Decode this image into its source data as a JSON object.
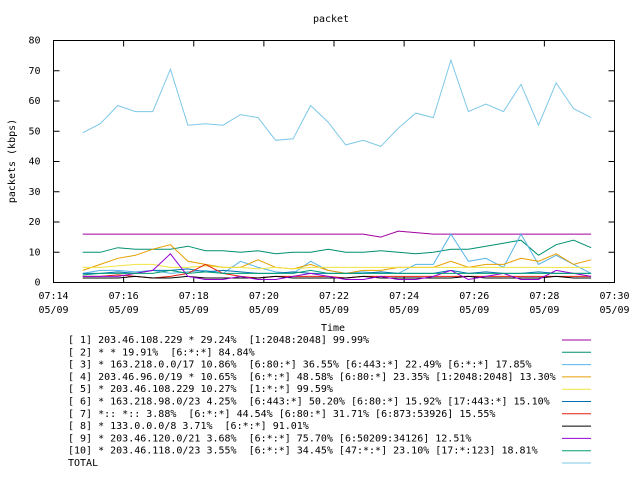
{
  "chart_data": {
    "type": "line",
    "title": "packet",
    "xlabel": "Time",
    "ylabel": "packets (kbps)",
    "xlim": [
      "07:14",
      "07:30"
    ],
    "xticks": [
      {
        "value": "07:14",
        "label": "07:14",
        "date": "05/09"
      },
      {
        "value": "07:16",
        "label": "07:16",
        "date": "05/09"
      },
      {
        "value": "07:18",
        "label": "07:18",
        "date": "05/09"
      },
      {
        "value": "07:20",
        "label": "07:20",
        "date": "05/09"
      },
      {
        "value": "07:22",
        "label": "07:22",
        "date": "05/09"
      },
      {
        "value": "07:24",
        "label": "07:24",
        "date": "05/09"
      },
      {
        "value": "07:26",
        "label": "07:26",
        "date": "05/09"
      },
      {
        "value": "07:28",
        "label": "07:28",
        "date": "05/09"
      },
      {
        "value": "07:30",
        "label": "07:30",
        "date": "05/09"
      }
    ],
    "ylim": [
      0,
      80
    ],
    "yticks": [
      0,
      10,
      20,
      30,
      40,
      50,
      60,
      70,
      80
    ],
    "x": [
      "07:14:50",
      "07:15:20",
      "07:15:50",
      "07:16:20",
      "07:16:50",
      "07:17:20",
      "07:17:50",
      "07:18:20",
      "07:18:50",
      "07:19:20",
      "07:19:50",
      "07:20:20",
      "07:20:50",
      "07:21:20",
      "07:21:50",
      "07:22:20",
      "07:22:50",
      "07:23:20",
      "07:23:50",
      "07:24:20",
      "07:24:50",
      "07:25:20",
      "07:25:50",
      "07:26:20",
      "07:26:50",
      "07:27:20",
      "07:27:50",
      "07:28:20",
      "07:28:50",
      "07:29:20"
    ],
    "series": [
      {
        "name": "[ 1] 203.46.108.229 * 29.24%  [1:2048:2048] 99.99%",
        "color": "#a000a0",
        "values": [
          16,
          16,
          16,
          16,
          16,
          16,
          16,
          16,
          16,
          16,
          16,
          16,
          16,
          16,
          16,
          16,
          16,
          15,
          17,
          16.5,
          16,
          16,
          16,
          16,
          16,
          16,
          16,
          16,
          16,
          16
        ]
      },
      {
        "name": "[ 2] * * 19.91%  [6:*:*] 84.84%",
        "color": "#009070",
        "values": [
          10,
          10,
          11.5,
          11,
          11,
          11,
          12,
          10.5,
          10.5,
          10,
          10.5,
          9.5,
          10,
          10,
          11,
          10,
          10,
          10.5,
          10,
          9.5,
          10,
          11,
          11,
          12,
          13,
          14,
          9,
          12.5,
          14,
          11.5
        ]
      },
      {
        "name": "[ 3] * 163.218.0.0/17 10.86%  [6:80:*] 36.55% [6:443:*] 22.49% [6:*:*] 17.85%",
        "color": "#56b4e9",
        "values": [
          3,
          4,
          4,
          3.5,
          4,
          3,
          3.5,
          4,
          3,
          7,
          5,
          3.5,
          3,
          7,
          4,
          3,
          3.5,
          3,
          3,
          6,
          6,
          16,
          7,
          8,
          5,
          16,
          6,
          9,
          6,
          3
        ]
      },
      {
        "name": "[ 4] 203.46.96.0/19 * 10.65%  [6:*:*] 48.58% [6:80:*] 23.35% [1:2048:2048] 13.30%",
        "color": "#e69f00",
        "values": [
          4,
          6,
          8,
          9,
          11,
          12.5,
          7,
          6,
          5,
          5,
          7.5,
          5,
          4.5,
          6,
          4,
          3,
          4,
          4,
          5,
          5,
          5,
          7,
          5,
          6,
          6,
          8,
          7,
          9.5,
          6,
          7.5
        ]
      },
      {
        "name": "[ 5] * 203.46.108.229 10.27%  [1:*:*] 99.59%",
        "color": "#f0e442",
        "values": [
          5,
          5,
          5.5,
          6,
          6,
          5,
          5,
          5.5,
          5,
          5,
          4.5,
          5,
          4.5,
          5,
          5,
          5,
          5,
          5,
          5,
          5,
          5,
          5,
          5,
          5,
          5,
          5,
          5,
          5,
          5,
          5
        ]
      },
      {
        "name": "[ 6] * 163.218.98.0/23 4.25%  [6:443:*] 50.20% [6:80:*] 15.92% [17:443:*] 15.10%",
        "color": "#0072b2",
        "values": [
          3,
          3,
          3.5,
          3,
          4,
          4,
          4.5,
          3.5,
          4,
          3.5,
          3,
          3,
          3.5,
          3,
          3,
          3,
          3,
          3.5,
          3,
          3,
          3,
          4,
          3,
          3.5,
          3,
          3,
          3.5,
          3,
          3,
          3
        ]
      },
      {
        "name": "[ 7] *:: *:: 3.88%  [6:*:*] 44.54% [6:80:*] 31.71% [6:873:53926] 15.55%",
        "color": "#e51e10",
        "values": [
          2,
          2,
          2.5,
          2,
          1.5,
          2,
          3,
          6,
          3,
          2,
          1.5,
          2,
          2,
          2,
          2,
          1.5,
          2,
          2,
          2,
          2,
          2,
          2,
          2,
          2,
          2,
          2,
          2,
          2,
          2,
          2
        ]
      },
      {
        "name": "[ 8] * 133.0.0.0/8 3.71%  [6:*:*] 91.01%",
        "color": "#000000",
        "values": [
          1.5,
          1.5,
          1.5,
          2,
          1.5,
          1.5,
          2,
          1.5,
          1.5,
          1.5,
          1.5,
          2,
          1.5,
          1.5,
          1.5,
          1.5,
          2,
          1.5,
          1.5,
          1.5,
          1.5,
          1.5,
          2,
          1.5,
          1.5,
          1.5,
          1.5,
          2,
          1.5,
          1.5
        ]
      },
      {
        "name": "[ 9] * 203.46.120.0/21 3.68%  [6:*:*] 75.70% [6:50209:34126] 12.51%",
        "color": "#9400d3",
        "values": [
          2,
          2,
          2,
          3,
          4,
          9.5,
          2,
          1,
          1,
          2,
          1,
          1,
          2,
          3,
          2,
          1,
          1,
          2,
          1,
          1,
          2,
          4,
          1,
          2,
          3,
          1,
          1,
          4,
          3,
          2
        ]
      },
      {
        "name": "[10] * 203.46.118.0/23 3.55%  [6:*:*] 34.45% [47:*:*] 23.10% [17:*:123] 18.81%",
        "color": "#009e73",
        "values": [
          2.5,
          3,
          3,
          3,
          3,
          4,
          3,
          3.5,
          3,
          3,
          3,
          3,
          3,
          4,
          3,
          3,
          3,
          3,
          3,
          3,
          3,
          3,
          3,
          3,
          3,
          3,
          3,
          3,
          3,
          3
        ]
      },
      {
        "name": "TOTAL",
        "color": "#7ec8e8",
        "values": [
          49.5,
          52.5,
          58.5,
          56.5,
          56.5,
          70.5,
          52,
          52.5,
          52,
          55.5,
          54.5,
          47,
          47.5,
          58.5,
          53,
          45.5,
          47,
          45,
          51,
          56,
          54.5,
          73.5,
          56.5,
          59,
          56.5,
          65.5,
          52,
          66,
          57.5,
          54.5
        ]
      }
    ]
  }
}
